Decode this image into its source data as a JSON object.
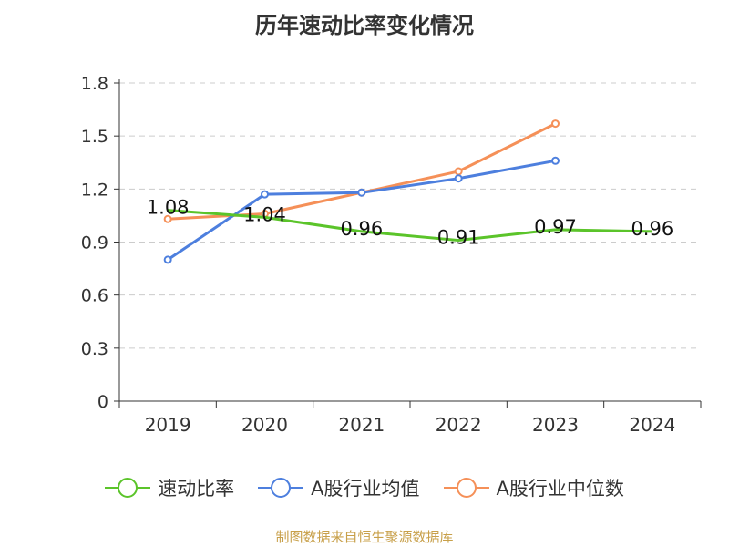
{
  "chart_data": {
    "type": "line",
    "title": "历年速动比率变化情况",
    "categories": [
      "2019",
      "2020",
      "2021",
      "2022",
      "2023",
      "2024"
    ],
    "ylim": [
      0,
      1.8
    ],
    "yticks": [
      "0",
      "0.3",
      "0.6",
      "0.9",
      "1.2",
      "1.5",
      "1.8"
    ],
    "grid": true,
    "legend_position": "bottom",
    "series": [
      {
        "name": "速动比率",
        "color": "#5bc42a",
        "values": [
          1.08,
          1.04,
          0.96,
          0.91,
          0.97,
          0.96
        ],
        "labels": [
          "1.08",
          "1.04",
          "0.96",
          "0.91",
          "0.97",
          "0.96"
        ]
      },
      {
        "name": "A股行业均值",
        "color": "#4d7fde",
        "values": [
          0.8,
          1.17,
          1.18,
          1.26,
          1.36,
          null
        ]
      },
      {
        "name": "A股行业中位数",
        "color": "#f59058",
        "values": [
          1.03,
          1.06,
          1.18,
          1.3,
          1.57,
          null
        ]
      }
    ]
  },
  "source_text": "制图数据来自恒生聚源数据库"
}
